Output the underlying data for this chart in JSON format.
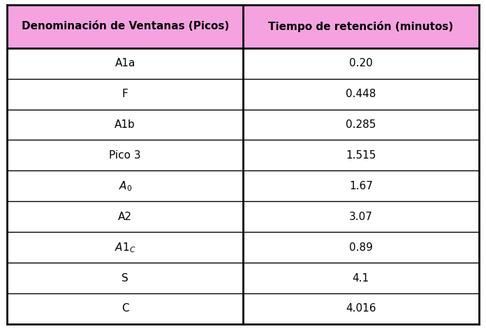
{
  "header": [
    "Denominación de Ventanas (Picos)",
    "Tiempo de retención (minutos)"
  ],
  "rows": [
    [
      "A1a",
      "0.20"
    ],
    [
      "F",
      "0.448"
    ],
    [
      "A1b",
      "0.285"
    ],
    [
      "Pico 3",
      "1.515"
    ],
    [
      "$A_0$",
      "1.67"
    ],
    [
      "A2",
      "3.07"
    ],
    [
      "$A1_C$",
      "0.89"
    ],
    [
      "S",
      "4.1"
    ],
    [
      "C",
      "4.016"
    ]
  ],
  "header_bg": "#f4a3e0",
  "header_text_color": "#000000",
  "cell_bg": "#ffffff",
  "cell_text_color": "#000000",
  "border_color": "#000000",
  "fig_bg": "#ffffff",
  "header_fontsize": 11,
  "cell_fontsize": 11,
  "outer_border_lw": 2.0,
  "inner_border_lw": 1.0
}
